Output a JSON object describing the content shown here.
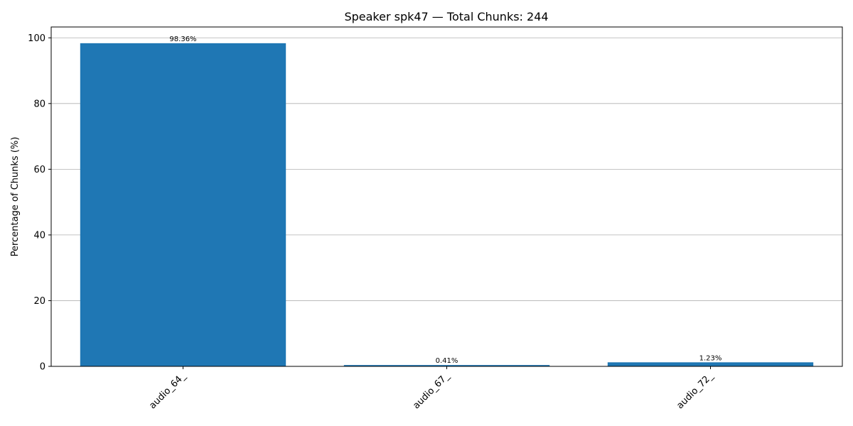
{
  "chart_data": {
    "type": "bar",
    "title": "Speaker spk47 — Total Chunks: 244",
    "xlabel": "",
    "ylabel": "Percentage of Chunks (%)",
    "categories": [
      "audio_64_",
      "audio_67_",
      "audio_72_"
    ],
    "values": [
      98.36,
      0.41,
      1.23
    ],
    "data_labels": [
      "98.36%",
      "0.41%",
      "1.23%"
    ],
    "ylim": [
      0,
      103.3
    ],
    "yticks": [
      0,
      20,
      40,
      60,
      80,
      100
    ],
    "grid": "y",
    "legend": "none",
    "bar_color": "#1f77b4",
    "grid_color": "#b0b0b0"
  }
}
